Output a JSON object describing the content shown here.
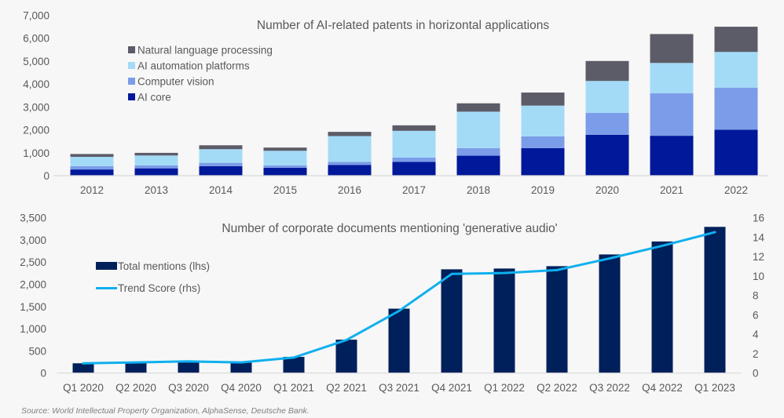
{
  "chart_data": [
    {
      "type": "bar",
      "stacked": true,
      "title": "Number of AI-related patents in horizontal applications",
      "xlabel": "",
      "ylabel": "",
      "categories": [
        "2012",
        "2013",
        "2014",
        "2015",
        "2016",
        "2017",
        "2018",
        "2019",
        "2020",
        "2021",
        "2022"
      ],
      "ylim": [
        0,
        7000
      ],
      "yticks": [
        0,
        1000,
        2000,
        3000,
        4000,
        5000,
        6000,
        7000
      ],
      "ytick_labels": [
        "0",
        "1,000",
        "2,000",
        "3,000",
        "4,000",
        "5,000",
        "6,000",
        "7,000"
      ],
      "grid": false,
      "legend_position": "top-left",
      "series": [
        {
          "name": "AI core",
          "color": "#00189a",
          "values": [
            270,
            320,
            410,
            345,
            470,
            605,
            870,
            1200,
            1785,
            1740,
            2000
          ]
        },
        {
          "name": "Computer vision",
          "color": "#7b9ce8",
          "values": [
            140,
            125,
            150,
            100,
            135,
            185,
            330,
            515,
            950,
            1850,
            1840
          ]
        },
        {
          "name": "AI automation platforms",
          "color": "#a3dbf7",
          "values": [
            410,
            435,
            595,
            640,
            1120,
            1165,
            1590,
            1340,
            1395,
            1325,
            1555
          ]
        },
        {
          "name": "Natural language processing",
          "color": "#5c5c68",
          "values": [
            125,
            115,
            170,
            140,
            185,
            240,
            365,
            570,
            870,
            1260,
            1100
          ]
        }
      ],
      "legend_order": [
        "Natural language processing",
        "AI automation platforms",
        "Computer vision",
        "AI core"
      ]
    },
    {
      "type": "bar",
      "title": "Number of corporate documents mentioning 'generative audio'",
      "xlabel": "",
      "ylabel": "",
      "categories": [
        "Q1 2020",
        "Q2 2020",
        "Q3 2020",
        "Q4 2020",
        "Q1 2021",
        "Q2 2021",
        "Q3 2021",
        "Q4 2021",
        "Q1 2022",
        "Q2 2022",
        "Q3 2022",
        "Q4 2022",
        "Q1 2023"
      ],
      "ylim": [
        0,
        3500
      ],
      "yticks": [
        0,
        500,
        1000,
        1500,
        2000,
        2500,
        3000,
        3500
      ],
      "ytick_labels": [
        "0",
        "500",
        "1,000",
        "1,500",
        "2,000",
        "2,500",
        "3,000",
        "3,500"
      ],
      "y2lim": [
        0,
        16
      ],
      "y2ticks": [
        0,
        2,
        4,
        6,
        8,
        10,
        12,
        14,
        16
      ],
      "y2tick_labels": [
        "0",
        "2",
        "4",
        "6",
        "8",
        "10",
        "12",
        "14",
        "16"
      ],
      "grid": false,
      "legend_position": "top-left",
      "series": [
        {
          "name": "Total mentions (lhs)",
          "type": "bar",
          "axis": "left",
          "color": "#00205b",
          "values": [
            220,
            225,
            240,
            236,
            365,
            752,
            1450,
            2336,
            2354,
            2407,
            2671,
            2963,
            3292
          ]
        },
        {
          "name": "Trend Score (rhs)",
          "type": "line",
          "axis": "right",
          "color": "#0fb0ee",
          "values": [
            1.0,
            1.1,
            1.2,
            1.1,
            1.6,
            3.4,
            6.4,
            10.2,
            10.3,
            10.6,
            11.8,
            13.1,
            14.5
          ]
        }
      ]
    }
  ],
  "source": "Source: World Intellectual Property Organization, AlphaSense, Deutsche Bank."
}
